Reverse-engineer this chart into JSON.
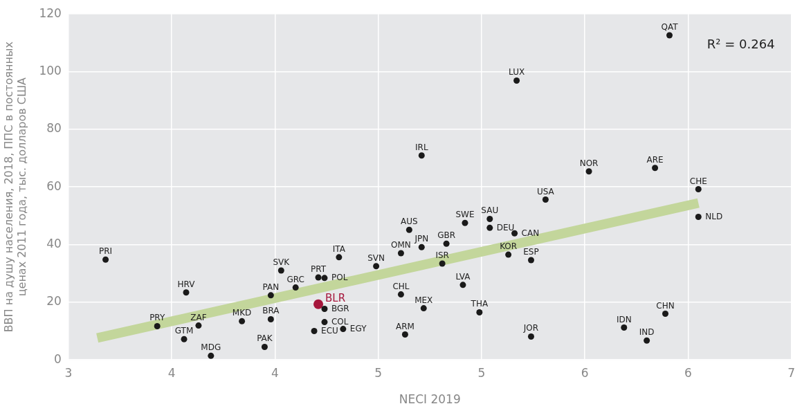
{
  "chart_data": {
    "type": "scatter",
    "xlabel": "NECI 2019",
    "ylabel": "ВВП на душу населения, 2018, ППС в постоянных\nценах 2011 года, тыс. долларов США",
    "xlim": [
      3,
      6.5
    ],
    "xticks": [
      3,
      {
        "value": 3.5,
        "label": "4"
      },
      4,
      {
        "value": 4.5,
        "label": "5"
      },
      5,
      {
        "value": 5.5,
        "label": "6"
      },
      6,
      {
        "value": 6.5,
        "label": "7"
      }
    ],
    "ylim": [
      0,
      120
    ],
    "yticks": [
      0,
      20,
      40,
      60,
      80,
      100,
      120
    ],
    "grid": true,
    "legend": false,
    "marker": "circle",
    "series": [
      {
        "type": "line",
        "color": "#c3d69b",
        "x": [
          3.14,
          6.05
        ],
        "values": [
          7.6,
          54.4
        ],
        "marker": "none"
      },
      {
        "color": "#1a1a1a",
        "x": [
          3.18,
          3.43,
          3.56,
          3.63,
          3.69,
          3.57,
          3.84,
          3.95,
          3.98,
          3.98,
          4.03,
          4.1,
          4.21,
          4.24,
          4.31,
          4.24,
          4.24,
          4.19,
          4.33,
          4.49,
          4.61,
          4.61,
          4.65,
          4.71,
          4.83,
          4.81,
          4.72,
          4.63,
          4.92,
          5.04,
          5.04,
          4.91,
          4.99,
          5.16,
          5.13,
          5.24,
          5.24,
          5.31,
          5.17,
          4.71,
          5.52,
          5.84,
          5.91,
          6.05,
          6.05,
          5.89,
          5.69,
          5.8
        ],
        "values": [
          34.8,
          11.7,
          7.2,
          11.9,
          1.4,
          23.4,
          13.4,
          4.5,
          14.1,
          22.4,
          31.0,
          25.1,
          28.6,
          28.4,
          35.6,
          17.7,
          13.1,
          10.0,
          10.7,
          32.5,
          22.7,
          37.0,
          45.1,
          39.1,
          40.3,
          33.4,
          17.9,
          8.8,
          47.5,
          48.9,
          45.8,
          26.0,
          16.5,
          43.9,
          36.5,
          34.6,
          8.1,
          55.6,
          96.9,
          70.9,
          65.4,
          66.6,
          112.6,
          59.2,
          49.6,
          16.0,
          11.2,
          6.7
        ]
      },
      {
        "name": "BLR",
        "color": "#a6163c",
        "x": [
          4.21
        ],
        "values": [
          19.3
        ]
      }
    ],
    "annotations": [
      {
        "text": "PRI",
        "x": 3.18,
        "y": 34.8
      },
      {
        "text": "PRY",
        "x": 3.43,
        "y": 11.7
      },
      {
        "text": "GTM",
        "x": 3.56,
        "y": 7.2
      },
      {
        "text": "ZAF",
        "x": 3.63,
        "y": 11.9
      },
      {
        "text": "MDG",
        "x": 3.69,
        "y": 1.4
      },
      {
        "text": "HRV",
        "x": 3.57,
        "y": 23.4
      },
      {
        "text": "MKD",
        "x": 3.84,
        "y": 13.4
      },
      {
        "text": "PAK",
        "x": 3.95,
        "y": 4.5
      },
      {
        "text": "BRA",
        "x": 3.98,
        "y": 14.1
      },
      {
        "text": "PAN",
        "x": 3.98,
        "y": 22.4
      },
      {
        "text": "SVK",
        "x": 4.03,
        "y": 31.0
      },
      {
        "text": "GRC",
        "x": 4.1,
        "y": 25.1
      },
      {
        "text": "PRT",
        "x": 4.21,
        "y": 28.6
      },
      {
        "text": "POL",
        "x": 4.24,
        "y": 28.4
      },
      {
        "text": "ITA",
        "x": 4.31,
        "y": 35.6
      },
      {
        "text": "BGR",
        "x": 4.24,
        "y": 17.7
      },
      {
        "text": "COL",
        "x": 4.24,
        "y": 13.1
      },
      {
        "text": "ECU",
        "x": 4.19,
        "y": 10.0
      },
      {
        "text": "EGY",
        "x": 4.33,
        "y": 10.7
      },
      {
        "text": "SVN",
        "x": 4.49,
        "y": 32.5
      },
      {
        "text": "CHL",
        "x": 4.61,
        "y": 22.7
      },
      {
        "text": "OMN",
        "x": 4.61,
        "y": 37.0
      },
      {
        "text": "AUS",
        "x": 4.65,
        "y": 45.1
      },
      {
        "text": "JPN",
        "x": 4.71,
        "y": 39.1
      },
      {
        "text": "GBR",
        "x": 4.83,
        "y": 40.3
      },
      {
        "text": "ISR",
        "x": 4.81,
        "y": 33.4
      },
      {
        "text": "MEX",
        "x": 4.72,
        "y": 17.9
      },
      {
        "text": "ARM",
        "x": 4.63,
        "y": 8.8
      },
      {
        "text": "SWE",
        "x": 4.92,
        "y": 47.5
      },
      {
        "text": "SAU",
        "x": 5.04,
        "y": 48.9
      },
      {
        "text": "DEU",
        "x": 5.04,
        "y": 45.8
      },
      {
        "text": "LVA",
        "x": 4.91,
        "y": 26.0
      },
      {
        "text": "THA",
        "x": 4.99,
        "y": 16.5
      },
      {
        "text": "CAN",
        "x": 5.16,
        "y": 43.9
      },
      {
        "text": "KOR",
        "x": 5.13,
        "y": 36.5
      },
      {
        "text": "ESP",
        "x": 5.24,
        "y": 34.6
      },
      {
        "text": "JOR",
        "x": 5.24,
        "y": 8.1
      },
      {
        "text": "USA",
        "x": 5.31,
        "y": 55.6
      },
      {
        "text": "LUX",
        "x": 5.17,
        "y": 96.9
      },
      {
        "text": "IRL",
        "x": 4.71,
        "y": 70.9
      },
      {
        "text": "NOR",
        "x": 5.52,
        "y": 65.4
      },
      {
        "text": "ARE",
        "x": 5.84,
        "y": 66.6
      },
      {
        "text": "QAT",
        "x": 5.91,
        "y": 112.6
      },
      {
        "text": "CHE",
        "x": 6.05,
        "y": 59.2
      },
      {
        "text": "NLD",
        "x": 6.05,
        "y": 49.6
      },
      {
        "text": "CHN",
        "x": 5.89,
        "y": 16.0
      },
      {
        "text": "IDN",
        "x": 5.69,
        "y": 11.2
      },
      {
        "text": "IND",
        "x": 5.8,
        "y": 6.7
      },
      "R² = 0.264"
    ]
  }
}
